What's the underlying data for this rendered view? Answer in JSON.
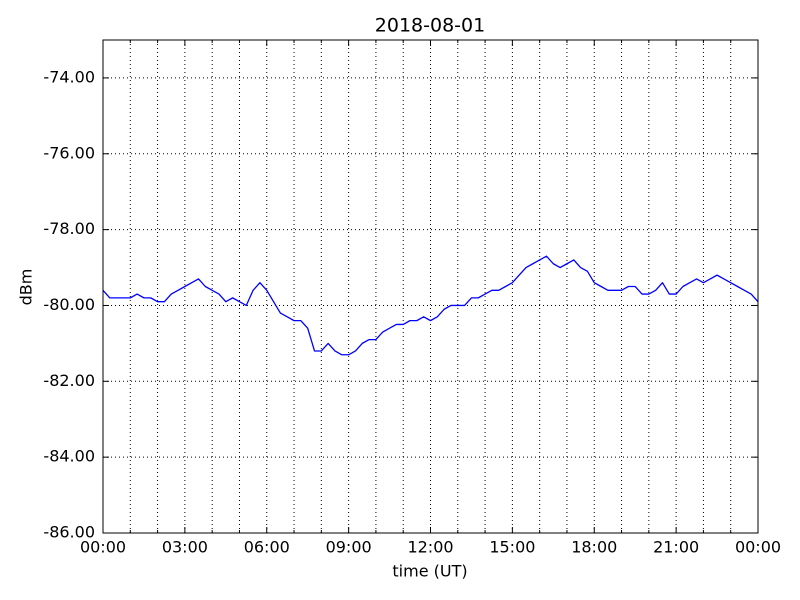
{
  "chart_data": {
    "type": "line",
    "title": "2018-08-01",
    "xlabel": "time (UT)",
    "ylabel": "dBm",
    "color": "#0000ff",
    "x": [
      0,
      0.25,
      0.5,
      0.75,
      1,
      1.25,
      1.5,
      1.75,
      2,
      2.25,
      2.5,
      2.75,
      3,
      3.25,
      3.5,
      3.75,
      4,
      4.25,
      4.5,
      4.75,
      5,
      5.25,
      5.5,
      5.75,
      6,
      6.25,
      6.5,
      6.75,
      7,
      7.25,
      7.5,
      7.75,
      8,
      8.25,
      8.5,
      8.75,
      9,
      9.25,
      9.5,
      9.75,
      10,
      10.25,
      10.5,
      10.75,
      11,
      11.25,
      11.5,
      11.75,
      12,
      12.25,
      12.5,
      12.75,
      13,
      13.25,
      13.5,
      13.75,
      14,
      14.25,
      14.5,
      14.75,
      15,
      15.25,
      15.5,
      15.75,
      16,
      16.25,
      16.5,
      16.75,
      17,
      17.25,
      17.5,
      17.75,
      18,
      18.25,
      18.5,
      18.75,
      19,
      19.25,
      19.5,
      19.75,
      20,
      20.25,
      20.5,
      20.75,
      21,
      21.25,
      21.5,
      21.75,
      22,
      22.25,
      22.5,
      22.75,
      23,
      23.25,
      23.5,
      23.75,
      24
    ],
    "values": [
      -79.6,
      -79.8,
      -79.8,
      -79.8,
      -79.8,
      -79.7,
      -79.8,
      -79.8,
      -79.9,
      -79.9,
      -79.7,
      -79.6,
      -79.5,
      -79.4,
      -79.3,
      -79.5,
      -79.6,
      -79.7,
      -79.9,
      -79.8,
      -79.9,
      -80.0,
      -79.6,
      -79.4,
      -79.6,
      -79.9,
      -80.2,
      -80.3,
      -80.4,
      -80.4,
      -80.6,
      -81.2,
      -81.2,
      -81.0,
      -81.2,
      -81.3,
      -81.3,
      -81.2,
      -81.0,
      -80.9,
      -80.9,
      -80.7,
      -80.6,
      -80.5,
      -80.5,
      -80.4,
      -80.4,
      -80.3,
      -80.4,
      -80.3,
      -80.1,
      -80.0,
      -80.0,
      -80.0,
      -79.8,
      -79.8,
      -79.7,
      -79.6,
      -79.6,
      -79.5,
      -79.4,
      -79.2,
      -79.0,
      -78.9,
      -78.8,
      -78.7,
      -78.9,
      -79.0,
      -78.9,
      -78.8,
      -79.0,
      -79.1,
      -79.4,
      -79.5,
      -79.6,
      -79.6,
      -79.6,
      -79.5,
      -79.5,
      -79.7,
      -79.7,
      -79.6,
      -79.4,
      -79.7,
      -79.7,
      -79.5,
      -79.4,
      -79.3,
      -79.4,
      -79.3,
      -79.2,
      -79.3,
      -79.4,
      -79.5,
      -79.6,
      -79.7,
      -79.9
    ],
    "xlim": [
      0,
      24
    ],
    "ylim": [
      -86,
      -73
    ],
    "xticks": [
      {
        "value": 0,
        "label": "00:00"
      },
      {
        "value": 3,
        "label": "03:00"
      },
      {
        "value": 6,
        "label": "06:00"
      },
      {
        "value": 9,
        "label": "09:00"
      },
      {
        "value": 12,
        "label": "12:00"
      },
      {
        "value": 15,
        "label": "15:00"
      },
      {
        "value": 18,
        "label": "18:00"
      },
      {
        "value": 21,
        "label": "21:00"
      },
      {
        "value": 24,
        "label": "00:00"
      }
    ],
    "x_minor_ticks": [
      1,
      2,
      4,
      5,
      7,
      8,
      10,
      11,
      13,
      14,
      16,
      17,
      19,
      20,
      22,
      23
    ],
    "yticks": [
      {
        "value": -86,
        "label": "-86.00"
      },
      {
        "value": -84,
        "label": "-84.00"
      },
      {
        "value": -82,
        "label": "-82.00"
      },
      {
        "value": -80,
        "label": "-80.00"
      },
      {
        "value": -78,
        "label": "-78.00"
      },
      {
        "value": -76,
        "label": "-76.00"
      },
      {
        "value": -74,
        "label": "-74.00"
      }
    ],
    "grid": true
  }
}
